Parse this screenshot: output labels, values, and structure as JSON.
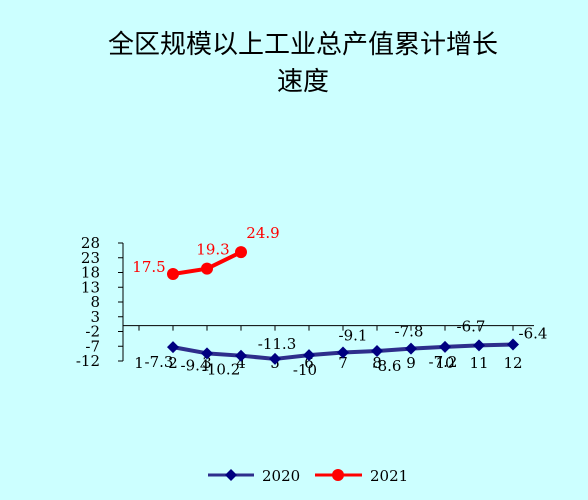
{
  "chart_data": {
    "type": "line",
    "title": "全区规模以上工业总产值累计增长",
    "title_line2": "速度",
    "x": [
      "1",
      "2",
      "3",
      "4",
      "5",
      "6",
      "7",
      "8",
      "9",
      "10",
      "11",
      "12"
    ],
    "yticks": [
      "28",
      "23",
      "18",
      "13",
      "8",
      "3",
      "-2",
      "-7",
      "-12"
    ],
    "ylim": [
      -12,
      28
    ],
    "grid": false,
    "legend_position": "bottom",
    "series": [
      {
        "name": "2020",
        "color": "#2e2e8c",
        "marker": "diamond",
        "values": [
          null,
          -7.3,
          -9.4,
          -10.2,
          -11.3,
          -10,
          -9.1,
          -8.6,
          -7.8,
          -7.2,
          -6.7,
          -6.4
        ],
        "labels": [
          "",
          "-7.3",
          "-9.4",
          "-10.2",
          "-11.3",
          "-10",
          "-9.1",
          "-8.6",
          "-7.8",
          "-7.2",
          "-6.7",
          "-6.4"
        ]
      },
      {
        "name": "2021",
        "color": "#ff0000",
        "marker": "circle",
        "values": [
          null,
          17.5,
          19.3,
          24.9,
          null,
          null,
          null,
          null,
          null,
          null,
          null,
          null
        ],
        "labels": [
          "",
          "17.5",
          "19.3",
          "24.9",
          "",
          "",
          "",
          "",
          "",
          "",
          "",
          ""
        ]
      }
    ]
  }
}
